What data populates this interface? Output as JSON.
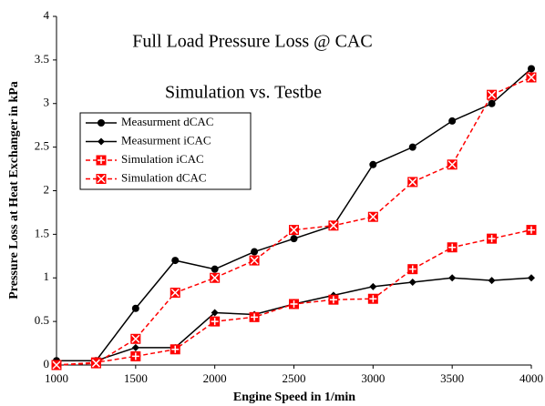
{
  "chart_data": {
    "type": "line",
    "annotations": [
      "Full Load Pressure Loss @ CAC",
      "Simulation vs. Testbe"
    ],
    "x_label": "Engine Speed in 1/min",
    "y_label": "Pressure Loss  at Heat Exchanger in kPa",
    "x": [
      1000,
      1250,
      1500,
      1750,
      2000,
      2250,
      2500,
      2750,
      3000,
      3250,
      3500,
      3750,
      4000
    ],
    "series": [
      {
        "name": "Measurment dCAC",
        "color": "#000000",
        "marker": "circle",
        "dashed": false,
        "values": [
          0.05,
          0.05,
          0.65,
          1.2,
          1.1,
          1.3,
          1.45,
          1.6,
          2.3,
          2.5,
          2.8,
          3.0,
          3.4
        ]
      },
      {
        "name": "Measurment iCAC",
        "color": "#000000",
        "marker": "diamond",
        "dashed": false,
        "values": [
          0.05,
          0.05,
          0.2,
          0.2,
          0.6,
          0.58,
          0.7,
          0.8,
          0.9,
          0.95,
          1.0,
          0.97,
          1.0
        ]
      },
      {
        "name": "Simulation iCAC",
        "color": "#ff0000",
        "marker": "square-plus",
        "dashed": true,
        "values": [
          0.0,
          0.03,
          0.1,
          0.18,
          0.5,
          0.55,
          0.7,
          0.75,
          0.76,
          1.1,
          1.35,
          1.45,
          1.55
        ]
      },
      {
        "name": "Simulation dCAC",
        "color": "#ff0000",
        "marker": "square-x",
        "dashed": true,
        "values": [
          0.0,
          0.02,
          0.3,
          0.83,
          1.0,
          1.2,
          1.55,
          1.6,
          1.7,
          2.1,
          2.3,
          3.1,
          3.3
        ]
      }
    ],
    "xlim": [
      1000,
      4000
    ],
    "xticks": [
      1000,
      1500,
      2000,
      2500,
      3000,
      3500,
      4000
    ],
    "ylim": [
      0,
      4
    ],
    "yticks": [
      0,
      0.5,
      1,
      1.5,
      2,
      2.5,
      3,
      3.5,
      4
    ],
    "grid": false,
    "legend": "upper left"
  }
}
